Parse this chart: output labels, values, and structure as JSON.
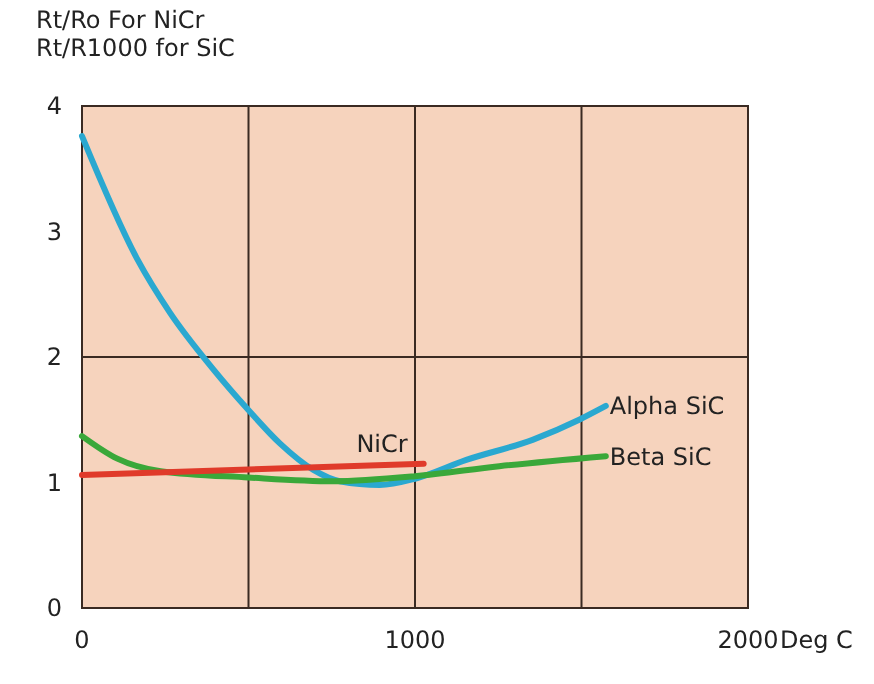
{
  "chart_data": {
    "type": "line",
    "ylabel": "Rt/Ro For NiCr\nRt/R1000 for SiC",
    "xlabel": "Deg C",
    "xlim": [
      0,
      2000
    ],
    "ylim": [
      0,
      4
    ],
    "xticks": [
      0,
      {
        "value": 500,
        "label": null
      },
      1000,
      {
        "value": 1500,
        "label": null
      },
      2000
    ],
    "yticks": [
      0,
      1,
      2,
      3,
      4
    ],
    "grid": "x",
    "ref_lines": [
      {
        "axis": "y",
        "value": 2,
        "label": null,
        "color": "#3a2a22"
      }
    ],
    "legend": false,
    "marker": "none",
    "line_style": "solid",
    "series": [
      {
        "name": "Alpha SiC",
        "color": "#2aa8d0",
        "x": [
          0,
          166,
          265,
          395,
          499,
          595,
          695,
          774,
          894,
          1000,
          1154,
          1353,
          1493,
          1573
        ],
        "values": [
          3.76,
          2.78,
          2.35,
          1.9,
          1.58,
          1.31,
          1.1,
          1.01,
          0.98,
          1.03,
          1.18,
          1.34,
          1.5,
          1.61
        ]
      },
      {
        "name": "Beta SiC",
        "color": "#3aa83a",
        "x": [
          0,
          106,
          236,
          499,
          754,
          1000,
          1253,
          1573
        ],
        "values": [
          1.37,
          1.19,
          1.09,
          1.04,
          1.01,
          1.05,
          1.13,
          1.21
        ]
      },
      {
        "name": "NiCr",
        "color": "#e03a2a",
        "x": [
          0,
          1026
        ],
        "values": [
          1.06,
          1.15
        ]
      }
    ]
  }
}
